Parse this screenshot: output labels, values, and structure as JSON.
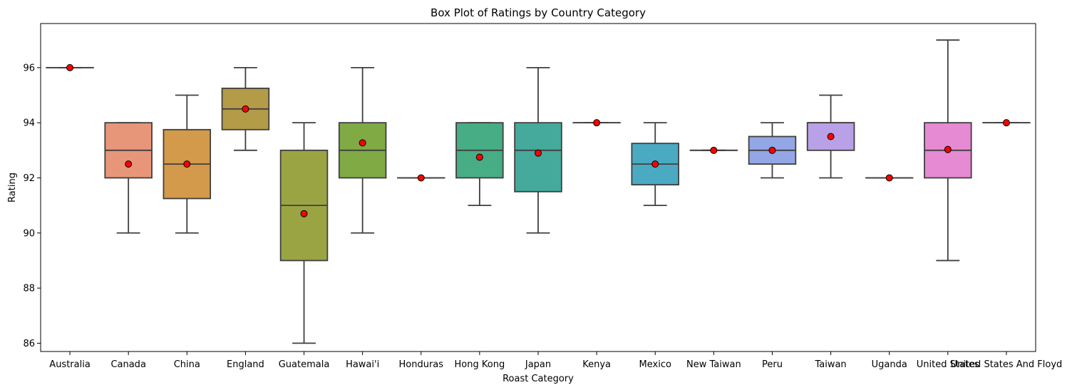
{
  "chart_data": {
    "type": "box",
    "title": "Box Plot of Ratings by Country Category",
    "xlabel": "Roast Category",
    "ylabel": "Rating",
    "ylim": [
      85.7,
      97.6
    ],
    "yticks": [
      86,
      88,
      90,
      92,
      94,
      96
    ],
    "grid": false,
    "legend": "none",
    "mean_marker_color": "#ff0000",
    "categories": [
      "Australia",
      "Canada",
      "China",
      "England",
      "Guatemala",
      "Hawai'i",
      "Honduras",
      "Hong Kong",
      "Japan",
      "Kenya",
      "Mexico",
      "New Taiwan",
      "Peru",
      "Taiwan",
      "Uganda",
      "United States",
      "United States And Floyd"
    ],
    "boxes": [
      {
        "category": "Australia",
        "min": 96,
        "q1": 96,
        "median": 96,
        "q3": 96,
        "max": 96,
        "mean": 96,
        "color": "#3274a1"
      },
      {
        "category": "Canada",
        "min": 90,
        "q1": 92,
        "median": 93,
        "q3": 94,
        "max": 94,
        "mean": 92.5,
        "color": "#e8967a"
      },
      {
        "category": "China",
        "min": 90,
        "q1": 91.25,
        "median": 92.5,
        "q3": 93.75,
        "max": 95,
        "mean": 92.5,
        "color": "#d29a4a"
      },
      {
        "category": "England",
        "min": 93,
        "q1": 93.75,
        "median": 94.5,
        "q3": 95.25,
        "max": 96,
        "mean": 94.5,
        "color": "#b39b48"
      },
      {
        "category": "Guatemala",
        "min": 86,
        "q1": 89,
        "median": 91,
        "q3": 93,
        "max": 94,
        "mean": 90.7,
        "color": "#9ba443"
      },
      {
        "category": "Hawai'i",
        "min": 90,
        "q1": 92,
        "median": 93,
        "q3": 94,
        "max": 96,
        "mean": 93.27,
        "color": "#7faa44"
      },
      {
        "category": "Honduras",
        "min": 92,
        "q1": 92,
        "median": 92,
        "q3": 92,
        "max": 92,
        "mean": 92,
        "color": "#55ad6b"
      },
      {
        "category": "Hong Kong",
        "min": 91,
        "q1": 92,
        "median": 93,
        "q3": 94,
        "max": 94,
        "mean": 92.75,
        "color": "#47ad84"
      },
      {
        "category": "Japan",
        "min": 90,
        "q1": 91.5,
        "median": 93,
        "q3": 94,
        "max": 96,
        "mean": 92.9,
        "color": "#45aa9b"
      },
      {
        "category": "Kenya",
        "min": 94,
        "q1": 94,
        "median": 94,
        "q3": 94,
        "max": 94,
        "mean": 94,
        "color": "#48a8b0"
      },
      {
        "category": "Mexico",
        "min": 91,
        "q1": 91.75,
        "median": 92.5,
        "q3": 93.25,
        "max": 94,
        "mean": 92.5,
        "color": "#4aaac2"
      },
      {
        "category": "New Taiwan",
        "min": 93,
        "q1": 93,
        "median": 93,
        "q3": 93,
        "max": 93,
        "mean": 93,
        "color": "#70a3d9"
      },
      {
        "category": "Peru",
        "min": 92,
        "q1": 92.5,
        "median": 93,
        "q3": 93.5,
        "max": 94,
        "mean": 93,
        "color": "#93a7e6"
      },
      {
        "category": "Taiwan",
        "min": 92,
        "q1": 93,
        "median": 94,
        "q3": 94,
        "max": 95,
        "mean": 93.5,
        "color": "#b9a1e8"
      },
      {
        "category": "Uganda",
        "min": 92,
        "q1": 92,
        "median": 92,
        "q3": 92,
        "max": 92,
        "mean": 92,
        "color": "#d49be0"
      },
      {
        "category": "United States",
        "min": 89,
        "q1": 92,
        "median": 93,
        "q3": 94,
        "max": 97,
        "mean": 93.03,
        "color": "#e68ad3"
      },
      {
        "category": "United States And Floyd",
        "min": 94,
        "q1": 94,
        "median": 94,
        "q3": 94,
        "max": 94,
        "mean": 94,
        "color": "#e58bbf"
      }
    ]
  }
}
